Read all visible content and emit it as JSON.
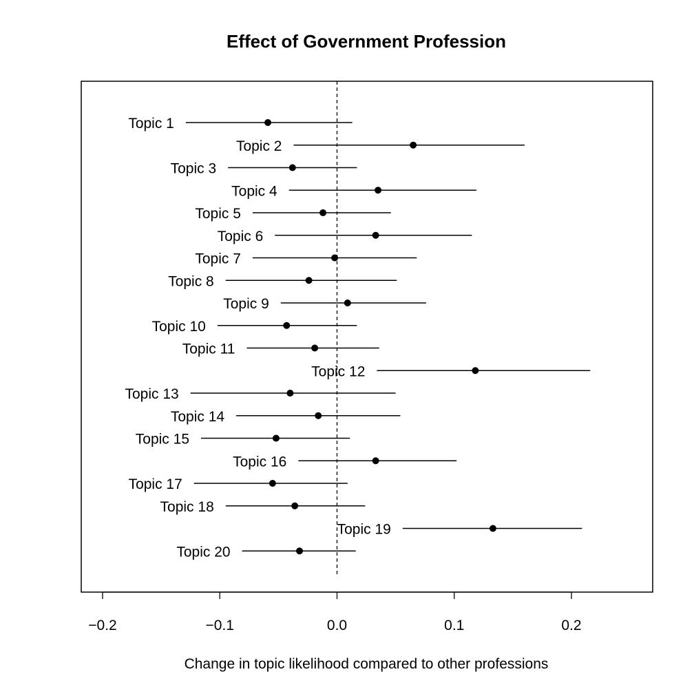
{
  "chart_data": {
    "type": "scatter",
    "subtype": "point-estimate-with-confidence-interval",
    "title": "Effect of Government Profession",
    "xlabel": "Change in topic likelihood compared to other professions",
    "ylabel": "",
    "xlim": [
      -0.22,
      0.27
    ],
    "xticks": [
      -0.2,
      -0.1,
      0.0,
      0.1,
      0.2
    ],
    "xtick_labels": [
      "−0.2",
      "−0.1",
      "0.0",
      "0.1",
      "0.2"
    ],
    "reference_line": {
      "x": 0.0,
      "style": "dashed"
    },
    "grid": false,
    "legend": "none",
    "topics": [
      {
        "label": "Topic 1",
        "estimate": -0.059,
        "lower": -0.129,
        "upper": 0.013
      },
      {
        "label": "Topic 2",
        "estimate": 0.065,
        "lower": -0.037,
        "upper": 0.16
      },
      {
        "label": "Topic 3",
        "estimate": -0.038,
        "lower": -0.093,
        "upper": 0.017
      },
      {
        "label": "Topic 4",
        "estimate": 0.035,
        "lower": -0.041,
        "upper": 0.119
      },
      {
        "label": "Topic 5",
        "estimate": -0.012,
        "lower": -0.072,
        "upper": 0.046
      },
      {
        "label": "Topic 6",
        "estimate": 0.033,
        "lower": -0.053,
        "upper": 0.115
      },
      {
        "label": "Topic 7",
        "estimate": -0.002,
        "lower": -0.072,
        "upper": 0.068
      },
      {
        "label": "Topic 8",
        "estimate": -0.024,
        "lower": -0.095,
        "upper": 0.051
      },
      {
        "label": "Topic 9",
        "estimate": 0.009,
        "lower": -0.048,
        "upper": 0.076
      },
      {
        "label": "Topic 10",
        "estimate": -0.043,
        "lower": -0.102,
        "upper": 0.017
      },
      {
        "label": "Topic 11",
        "estimate": -0.019,
        "lower": -0.077,
        "upper": 0.036
      },
      {
        "label": "Topic 12",
        "estimate": 0.118,
        "lower": 0.034,
        "upper": 0.216
      },
      {
        "label": "Topic 13",
        "estimate": -0.04,
        "lower": -0.125,
        "upper": 0.05
      },
      {
        "label": "Topic 14",
        "estimate": -0.016,
        "lower": -0.086,
        "upper": 0.054
      },
      {
        "label": "Topic 15",
        "estimate": -0.052,
        "lower": -0.116,
        "upper": 0.011
      },
      {
        "label": "Topic 16",
        "estimate": 0.033,
        "lower": -0.033,
        "upper": 0.102
      },
      {
        "label": "Topic 17",
        "estimate": -0.055,
        "lower": -0.122,
        "upper": 0.009
      },
      {
        "label": "Topic 18",
        "estimate": -0.036,
        "lower": -0.095,
        "upper": 0.024
      },
      {
        "label": "Topic 19",
        "estimate": 0.133,
        "lower": 0.056,
        "upper": 0.209
      },
      {
        "label": "Topic 20",
        "estimate": -0.032,
        "lower": -0.081,
        "upper": 0.016
      }
    ],
    "colors": {
      "points": "#000000",
      "lines": "#000000",
      "frame": "#000000",
      "background": "#ffffff"
    }
  }
}
